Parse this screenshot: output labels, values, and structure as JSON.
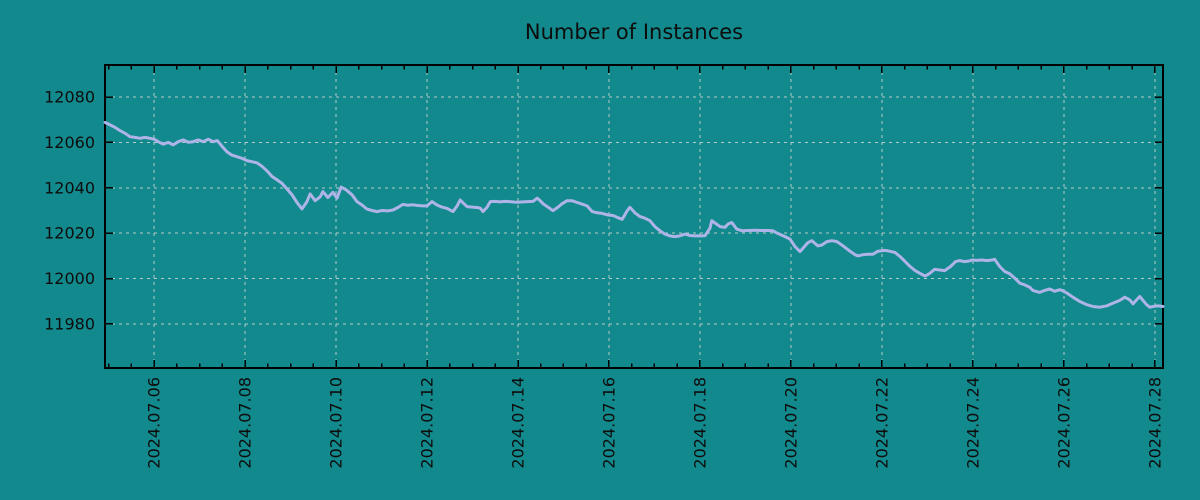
{
  "chart_data": {
    "type": "line",
    "title": "Number of Instances",
    "xlabel": "",
    "ylabel": "",
    "legend": "none",
    "grid": "dashed, on major ticks",
    "background_color": "#12898c",
    "line_color": "#aeb4e8",
    "grid_color": "#c9d2d1",
    "axis_color": "#000000",
    "text_color": "#0d0d0d",
    "x_unit": "days since 2024.07.04 00:00",
    "xlim_days": [
      0.92,
      24.18
    ],
    "ylim": [
      11960.6,
      12094.1
    ],
    "y_ticks": [
      11980,
      12000,
      12020,
      12040,
      12060,
      12080
    ],
    "x_ticks": [
      {
        "day": 2,
        "label": "2024.07.06"
      },
      {
        "day": 4,
        "label": "2024.07.08"
      },
      {
        "day": 6,
        "label": "2024.07.10"
      },
      {
        "day": 8,
        "label": "2024.07.12"
      },
      {
        "day": 10,
        "label": "2024.07.14"
      },
      {
        "day": 12,
        "label": "2024.07.16"
      },
      {
        "day": 14,
        "label": "2024.07.18"
      },
      {
        "day": 16,
        "label": "2024.07.20"
      },
      {
        "day": 18,
        "label": "2024.07.22"
      },
      {
        "day": 20,
        "label": "2024.07.24"
      },
      {
        "day": 22,
        "label": "2024.07.26"
      },
      {
        "day": 24,
        "label": "2024.07.28"
      }
    ],
    "x_minor_tick_interval_days": 0.5,
    "series": [
      {
        "name": "Number of Instances",
        "points": [
          [
            0.92,
            12068.8
          ],
          [
            1.03,
            12067.7
          ],
          [
            1.14,
            12066.6
          ],
          [
            1.25,
            12065.2
          ],
          [
            1.36,
            12064.0
          ],
          [
            1.47,
            12062.5
          ],
          [
            1.58,
            12062.2
          ],
          [
            1.69,
            12061.8
          ],
          [
            1.8,
            12062.2
          ],
          [
            1.91,
            12061.8
          ],
          [
            2.0,
            12061.4
          ],
          [
            2.09,
            12060.3
          ],
          [
            2.2,
            12059.2
          ],
          [
            2.31,
            12060.0
          ],
          [
            2.42,
            12058.9
          ],
          [
            2.53,
            12060.3
          ],
          [
            2.64,
            12061.1
          ],
          [
            2.75,
            12060.1
          ],
          [
            2.86,
            12060.3
          ],
          [
            2.97,
            12061.1
          ],
          [
            3.08,
            12060.3
          ],
          [
            3.19,
            12061.4
          ],
          [
            3.3,
            12060.3
          ],
          [
            3.39,
            12060.8
          ],
          [
            3.5,
            12058.1
          ],
          [
            3.6,
            12055.9
          ],
          [
            3.71,
            12054.4
          ],
          [
            3.82,
            12053.7
          ],
          [
            3.93,
            12053.0
          ],
          [
            4.04,
            12052.0
          ],
          [
            4.15,
            12051.5
          ],
          [
            4.26,
            12051.0
          ],
          [
            4.37,
            12049.5
          ],
          [
            4.48,
            12047.5
          ],
          [
            4.59,
            12045.0
          ],
          [
            4.7,
            12043.5
          ],
          [
            4.81,
            12042.0
          ],
          [
            4.92,
            12039.5
          ],
          [
            5.03,
            12037.0
          ],
          [
            5.14,
            12033.5
          ],
          [
            5.25,
            12030.7
          ],
          [
            5.36,
            12033.9
          ],
          [
            5.43,
            12037.3
          ],
          [
            5.54,
            12034.3
          ],
          [
            5.65,
            12036.0
          ],
          [
            5.71,
            12038.3
          ],
          [
            5.82,
            12035.7
          ],
          [
            5.93,
            12038.0
          ],
          [
            6.02,
            12035.4
          ],
          [
            6.11,
            12040.3
          ],
          [
            6.22,
            12039.1
          ],
          [
            6.35,
            12036.9
          ],
          [
            6.46,
            12033.9
          ],
          [
            6.57,
            12032.4
          ],
          [
            6.68,
            12030.6
          ],
          [
            6.79,
            12030.0
          ],
          [
            6.9,
            12029.5
          ],
          [
            7.01,
            12030.0
          ],
          [
            7.14,
            12029.8
          ],
          [
            7.25,
            12030.2
          ],
          [
            7.36,
            12031.3
          ],
          [
            7.47,
            12032.7
          ],
          [
            7.58,
            12032.3
          ],
          [
            7.69,
            12032.5
          ],
          [
            7.8,
            12032.2
          ],
          [
            7.91,
            12032.0
          ],
          [
            8.0,
            12032.0
          ],
          [
            8.11,
            12033.9
          ],
          [
            8.22,
            12032.4
          ],
          [
            8.33,
            12031.5
          ],
          [
            8.44,
            12030.9
          ],
          [
            8.57,
            12029.5
          ],
          [
            8.66,
            12032.0
          ],
          [
            8.73,
            12034.6
          ],
          [
            8.81,
            12033.0
          ],
          [
            8.88,
            12031.7
          ],
          [
            8.99,
            12031.5
          ],
          [
            9.1,
            12031.3
          ],
          [
            9.17,
            12031.0
          ],
          [
            9.23,
            12029.5
          ],
          [
            9.32,
            12031.5
          ],
          [
            9.39,
            12033.9
          ],
          [
            9.5,
            12034.0
          ],
          [
            9.6,
            12033.8
          ],
          [
            9.71,
            12034.0
          ],
          [
            9.82,
            12033.9
          ],
          [
            9.93,
            12033.7
          ],
          [
            10.0,
            12033.6
          ],
          [
            10.11,
            12033.8
          ],
          [
            10.22,
            12033.9
          ],
          [
            10.33,
            12034.0
          ],
          [
            10.42,
            12035.4
          ],
          [
            10.48,
            12034.5
          ],
          [
            10.55,
            12033.0
          ],
          [
            10.66,
            12031.5
          ],
          [
            10.77,
            12029.9
          ],
          [
            10.88,
            12031.5
          ],
          [
            10.97,
            12033.0
          ],
          [
            11.08,
            12034.3
          ],
          [
            11.19,
            12034.3
          ],
          [
            11.3,
            12033.5
          ],
          [
            11.41,
            12032.8
          ],
          [
            11.52,
            12032.0
          ],
          [
            11.63,
            12029.5
          ],
          [
            11.74,
            12029.0
          ],
          [
            11.85,
            12028.7
          ],
          [
            11.98,
            12028.0
          ],
          [
            12.09,
            12027.8
          ],
          [
            12.2,
            12026.8
          ],
          [
            12.29,
            12026.1
          ],
          [
            12.4,
            12029.9
          ],
          [
            12.46,
            12031.4
          ],
          [
            12.57,
            12029.0
          ],
          [
            12.68,
            12027.3
          ],
          [
            12.79,
            12026.6
          ],
          [
            12.9,
            12025.5
          ],
          [
            13.01,
            12022.9
          ],
          [
            13.12,
            12021.1
          ],
          [
            13.23,
            12019.6
          ],
          [
            13.34,
            12018.8
          ],
          [
            13.45,
            12018.5
          ],
          [
            13.56,
            12018.8
          ],
          [
            13.67,
            12019.6
          ],
          [
            13.78,
            12019.0
          ],
          [
            13.89,
            12018.8
          ],
          [
            14.0,
            12018.8
          ],
          [
            14.11,
            12018.9
          ],
          [
            14.22,
            12022.2
          ],
          [
            14.26,
            12025.5
          ],
          [
            14.35,
            12024.2
          ],
          [
            14.44,
            12022.9
          ],
          [
            14.55,
            12022.6
          ],
          [
            14.62,
            12024.1
          ],
          [
            14.7,
            12024.7
          ],
          [
            14.81,
            12021.8
          ],
          [
            14.92,
            12021.1
          ],
          [
            15.06,
            12021.2
          ],
          [
            15.21,
            12021.3
          ],
          [
            15.36,
            12021.2
          ],
          [
            15.5,
            12021.2
          ],
          [
            15.6,
            12021.1
          ],
          [
            15.71,
            12019.9
          ],
          [
            15.87,
            12018.5
          ],
          [
            15.98,
            12017.4
          ],
          [
            16.09,
            12014.1
          ],
          [
            16.2,
            12011.9
          ],
          [
            16.31,
            12014.4
          ],
          [
            16.37,
            12015.8
          ],
          [
            16.46,
            12016.7
          ],
          [
            16.53,
            12015.5
          ],
          [
            16.59,
            12014.4
          ],
          [
            16.68,
            12014.8
          ],
          [
            16.79,
            12016.3
          ],
          [
            16.9,
            12016.7
          ],
          [
            17.01,
            12016.3
          ],
          [
            17.14,
            12014.5
          ],
          [
            17.3,
            12012.0
          ],
          [
            17.41,
            12010.5
          ],
          [
            17.47,
            12010.0
          ],
          [
            17.58,
            12010.5
          ],
          [
            17.69,
            12010.7
          ],
          [
            17.8,
            12010.7
          ],
          [
            17.91,
            12012.0
          ],
          [
            18.07,
            12012.4
          ],
          [
            18.18,
            12012.0
          ],
          [
            18.29,
            12011.5
          ],
          [
            18.4,
            12009.7
          ],
          [
            18.51,
            12007.5
          ],
          [
            18.62,
            12005.3
          ],
          [
            18.73,
            12003.5
          ],
          [
            18.84,
            12002.3
          ],
          [
            18.95,
            12001.1
          ],
          [
            19.05,
            12002.3
          ],
          [
            19.16,
            12004.1
          ],
          [
            19.27,
            12003.8
          ],
          [
            19.38,
            12003.5
          ],
          [
            19.51,
            12005.3
          ],
          [
            19.62,
            12007.5
          ],
          [
            19.71,
            12007.9
          ],
          [
            19.82,
            12007.5
          ],
          [
            19.93,
            12007.8
          ],
          [
            19.98,
            12008.2
          ],
          [
            20.09,
            12008.0
          ],
          [
            20.2,
            12008.2
          ],
          [
            20.31,
            12007.9
          ],
          [
            20.42,
            12008.2
          ],
          [
            20.48,
            12008.5
          ],
          [
            20.59,
            12005.3
          ],
          [
            20.7,
            12003.1
          ],
          [
            20.81,
            12002.1
          ],
          [
            20.92,
            12000.2
          ],
          [
            21.03,
            11998.0
          ],
          [
            21.14,
            11997.2
          ],
          [
            21.25,
            11996.2
          ],
          [
            21.32,
            11994.8
          ],
          [
            21.47,
            11993.9
          ],
          [
            21.58,
            11994.8
          ],
          [
            21.69,
            11995.4
          ],
          [
            21.8,
            11994.4
          ],
          [
            21.91,
            11995.1
          ],
          [
            21.96,
            11994.8
          ],
          [
            22.07,
            11993.6
          ],
          [
            22.2,
            11991.8
          ],
          [
            22.35,
            11989.9
          ],
          [
            22.51,
            11988.5
          ],
          [
            22.64,
            11987.7
          ],
          [
            22.79,
            11987.4
          ],
          [
            22.95,
            11988.0
          ],
          [
            23.08,
            11989.2
          ],
          [
            23.23,
            11990.4
          ],
          [
            23.34,
            11991.8
          ],
          [
            23.45,
            11990.6
          ],
          [
            23.52,
            11988.9
          ],
          [
            23.6,
            11990.6
          ],
          [
            23.67,
            11992.1
          ],
          [
            23.74,
            11990.4
          ],
          [
            23.82,
            11988.5
          ],
          [
            23.89,
            11987.4
          ],
          [
            23.96,
            11987.7
          ],
          [
            24.07,
            11988.0
          ],
          [
            24.18,
            11987.7
          ]
        ]
      }
    ]
  }
}
